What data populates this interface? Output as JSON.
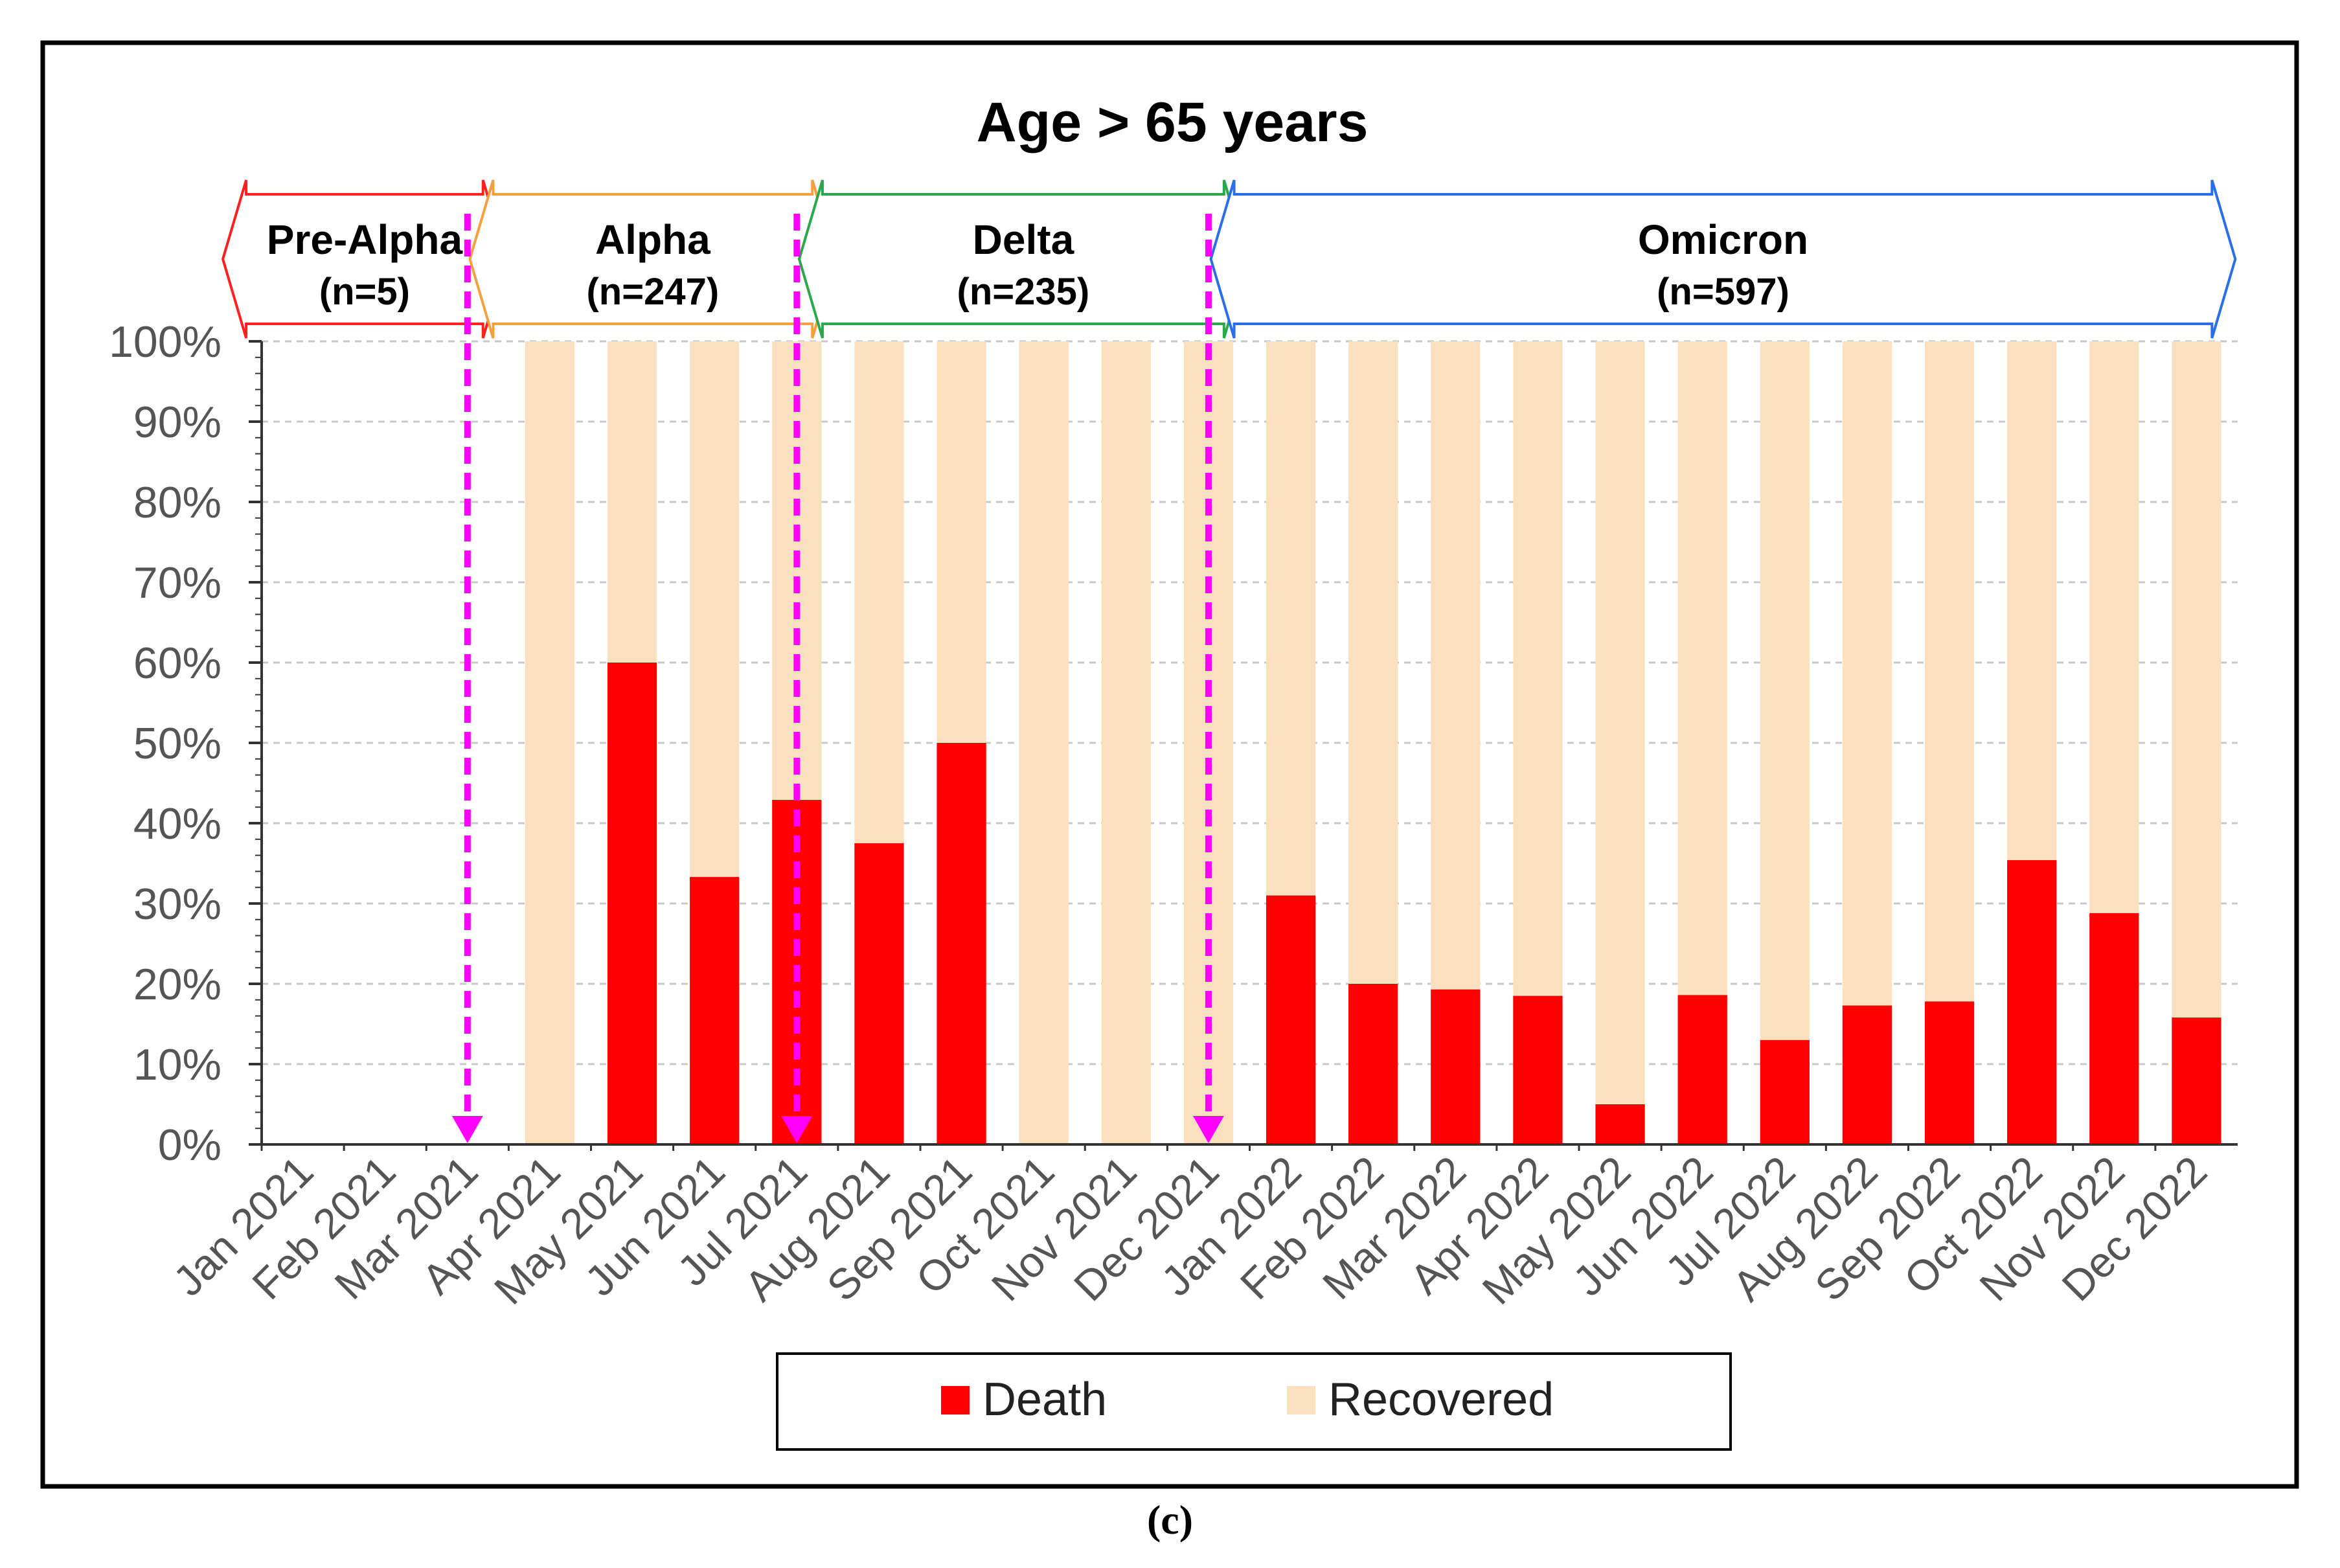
{
  "chart_data": {
    "type": "bar",
    "stacked": true,
    "title": "Age > 65 years",
    "categories": [
      "Jan 2021",
      "Feb 2021",
      "Mar 2021",
      "Apr 2021",
      "May 2021",
      "Jun 2021",
      "Jul 2021",
      "Aug 2021",
      "Sep 2021",
      "Oct 2021",
      "Nov 2021",
      "Dec 2021",
      "Jan 2022",
      "Feb 2022",
      "Mar 2022",
      "Apr 2022",
      "May 2022",
      "Jun 2022",
      "Jul 2022",
      "Aug 2022",
      "Sep 2022",
      "Oct 2022",
      "Nov 2022",
      "Dec 2022"
    ],
    "series": [
      {
        "name": "Death",
        "color": "#ff0000",
        "values": [
          0,
          0,
          0,
          0,
          60,
          33.3,
          42.9,
          37.5,
          50,
          0,
          0,
          0,
          31,
          20,
          19.3,
          18.5,
          5,
          18.6,
          13,
          17.3,
          17.8,
          35.4,
          28.8,
          15.8
        ]
      },
      {
        "name": "Recovered",
        "color": "#fbe0c0",
        "values": [
          0,
          0,
          0,
          100,
          40,
          66.7,
          57.1,
          62.5,
          50,
          100,
          100,
          100,
          69,
          80,
          80.7,
          81.5,
          95,
          81.4,
          87,
          82.7,
          82.2,
          64.6,
          71.2,
          84.2
        ]
      }
    ],
    "yticks": [
      "0%",
      "10%",
      "20%",
      "30%",
      "40%",
      "50%",
      "60%",
      "70%",
      "80%",
      "90%",
      "100%"
    ],
    "ylim": [
      0,
      100
    ],
    "xlabel": "",
    "ylabel": "",
    "legend": [
      "Death",
      "Recovered"
    ],
    "legend_position": "bottom-center",
    "periods": [
      {
        "name": "Pre-Alpha",
        "n": "(n=5)",
        "color": "#ff2020",
        "start": 0,
        "end": 2
      },
      {
        "name": "Alpha",
        "n": "(n=247)",
        "color": "#f5a040",
        "start": 3,
        "end": 6
      },
      {
        "name": "Delta",
        "n": "(n=235)",
        "color": "#2aa84a",
        "start": 7,
        "end": 11
      },
      {
        "name": "Omicron",
        "n": "(n=597)",
        "color": "#2a6fe8",
        "start": 12,
        "end": 23
      }
    ],
    "period_boundaries": [
      3,
      7,
      12
    ],
    "boundary_color": "#ff00ff"
  },
  "caption": "(c)"
}
